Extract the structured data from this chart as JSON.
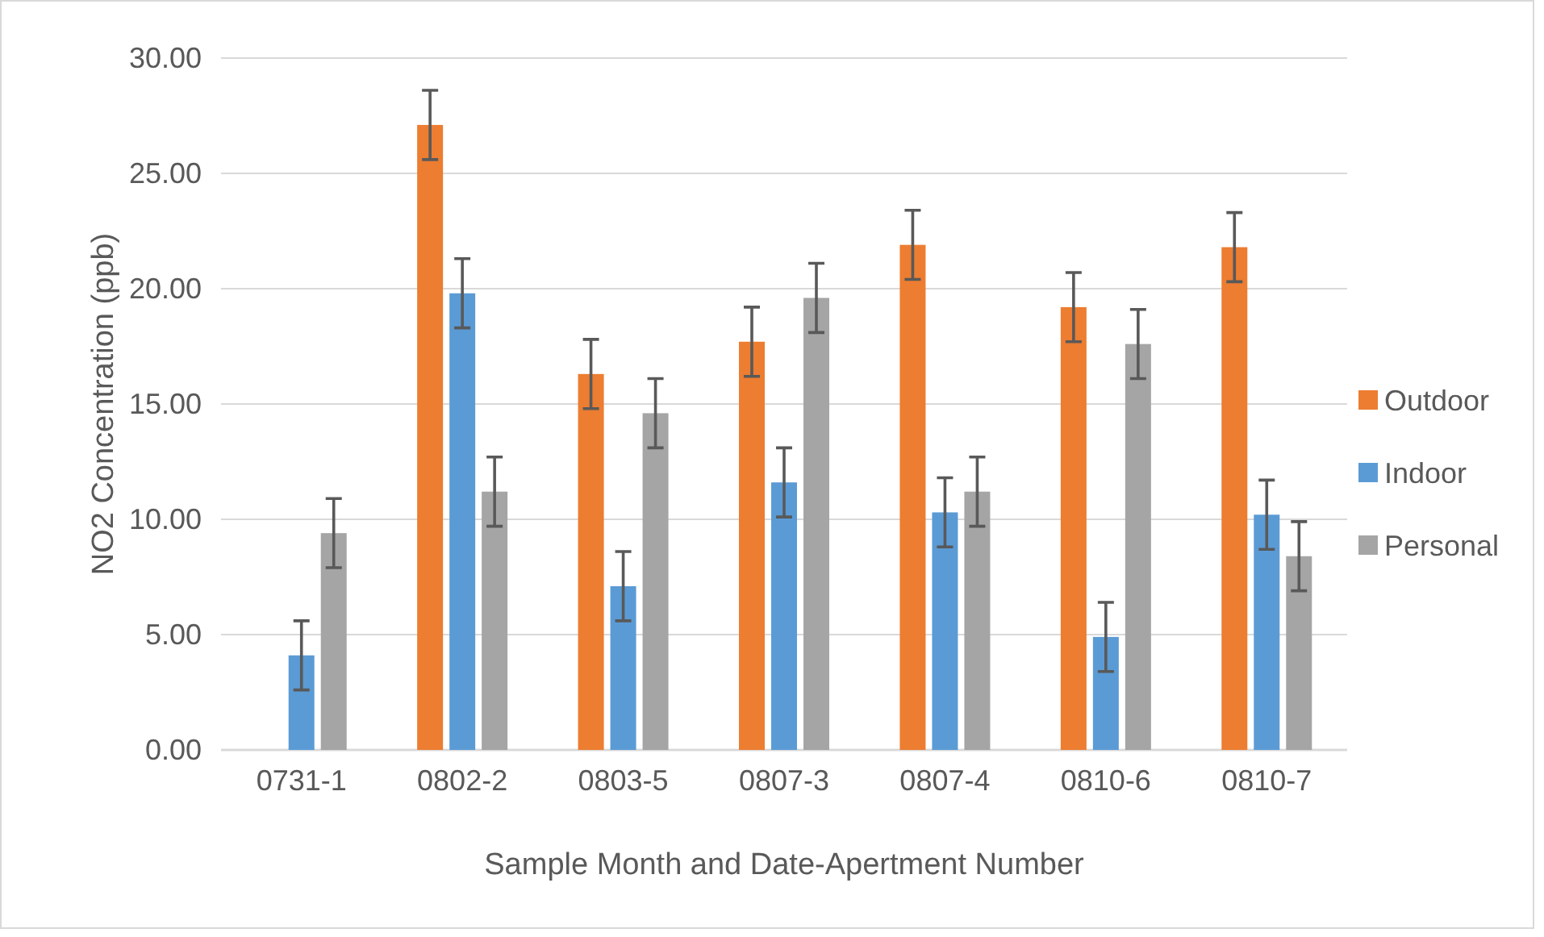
{
  "chart_data": {
    "type": "bar",
    "xlabel": "Sample Month and Date-Apertment Number",
    "ylabel": "NO2 Concentration (ppb)",
    "categories": [
      "0731-1",
      "0802-2",
      "0803-5",
      "0807-3",
      "0807-4",
      "0810-6",
      "0810-7"
    ],
    "series": [
      {
        "name": "Outdoor",
        "color": "#ed7d31",
        "values": [
          null,
          27.1,
          16.3,
          17.7,
          21.9,
          19.2,
          21.8
        ],
        "errors": [
          null,
          1.5,
          1.5,
          1.5,
          1.5,
          1.5,
          1.5
        ]
      },
      {
        "name": "Indoor",
        "color": "#5b9bd5",
        "values": [
          4.1,
          19.8,
          7.1,
          11.6,
          10.3,
          4.9,
          10.2
        ],
        "errors": [
          1.5,
          1.5,
          1.5,
          1.5,
          1.5,
          1.5,
          1.5
        ]
      },
      {
        "name": "Personal",
        "color": "#a5a5a5",
        "values": [
          9.4,
          11.2,
          14.6,
          19.6,
          11.2,
          17.6,
          8.4
        ],
        "errors": [
          1.5,
          1.5,
          1.5,
          1.5,
          1.5,
          1.5,
          1.5
        ]
      }
    ],
    "ylim": [
      0,
      30
    ],
    "yticks": [
      {
        "value": 0,
        "label": "0.00"
      },
      {
        "value": 5,
        "label": "5.00"
      },
      {
        "value": 10,
        "label": "10.00"
      },
      {
        "value": 15,
        "label": "15.00"
      },
      {
        "value": 20,
        "label": "20.00"
      },
      {
        "value": 25,
        "label": "25.00"
      },
      {
        "value": 30,
        "label": "30.00"
      }
    ],
    "grid": "y",
    "legend": "right"
  }
}
